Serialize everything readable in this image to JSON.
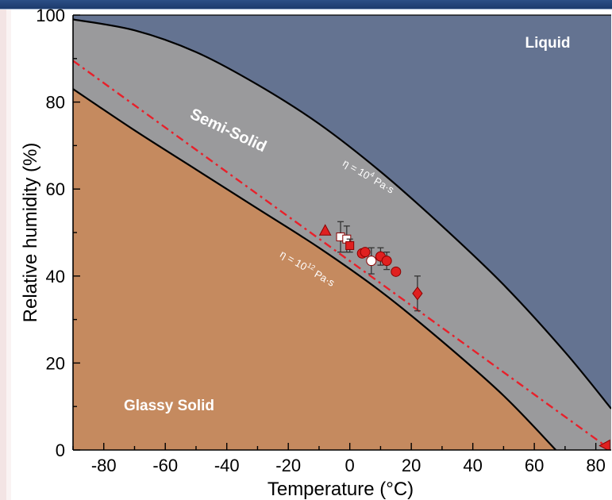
{
  "chart_data": {
    "type": "scatter",
    "title": "",
    "xlabel": "Temperature (°C)",
    "ylabel": "Relative humidity (%)",
    "xlim": [
      -90,
      85
    ],
    "ylim": [
      0,
      100
    ],
    "x_ticks": [
      "-80",
      "-60",
      "-40",
      "-20",
      "0",
      "20",
      "40",
      "60",
      "80"
    ],
    "y_ticks": [
      "0",
      "20",
      "40",
      "60",
      "80",
      "100"
    ],
    "regions": [
      {
        "name": "Liquid",
        "color": "#647391"
      },
      {
        "name": "Semi-Solid",
        "color": "#9a9a9c"
      },
      {
        "name": "Glassy Solid",
        "color": "#c58a5f"
      }
    ],
    "curves": [
      {
        "label": "η = 10⁴ Pa·s",
        "x": [
          -90,
          -70,
          -50,
          -30,
          -10,
          10,
          30,
          50,
          70,
          85
        ],
        "y": [
          99,
          96.5,
          91.5,
          84,
          75,
          64,
          51.5,
          38,
          22.5,
          9.5
        ]
      },
      {
        "label": "η = 10¹² Pa·s",
        "x": [
          -90,
          -70,
          -50,
          -30,
          -10,
          10,
          30,
          50,
          67
        ],
        "y": [
          83,
          73.5,
          64.5,
          55.5,
          46.5,
          36.5,
          25,
          12.5,
          0
        ]
      }
    ],
    "fit_line": {
      "style": "dashed",
      "color": "#e8202a",
      "x": [
        -90,
        83
      ],
      "y": [
        89.5,
        1
      ]
    },
    "series": [
      {
        "marker": "triangle-up",
        "fill": "#e02020",
        "points": [
          {
            "x": -8,
            "y": 50.5,
            "err": 0
          }
        ]
      },
      {
        "marker": "square",
        "fill": "#ffffff",
        "points": [
          {
            "x": -3,
            "y": 49,
            "err": 3.5
          },
          {
            "x": -1,
            "y": 48.5,
            "err": 3
          }
        ]
      },
      {
        "marker": "square",
        "fill": "#e02020",
        "points": [
          {
            "x": 0,
            "y": 47,
            "err": 1.5
          }
        ]
      },
      {
        "marker": "circle",
        "fill": "#e02020",
        "points": [
          {
            "x": 4,
            "y": 45.2,
            "err": 0
          },
          {
            "x": 5,
            "y": 45.5,
            "err": 0
          },
          {
            "x": 10,
            "y": 44.5,
            "err": 2
          },
          {
            "x": 12,
            "y": 43.5,
            "err": 2
          },
          {
            "x": 15,
            "y": 41,
            "err": 0
          }
        ]
      },
      {
        "marker": "circle",
        "fill": "#ffffff",
        "points": [
          {
            "x": 7,
            "y": 43.5,
            "err": 3
          }
        ]
      },
      {
        "marker": "diamond",
        "fill": "#e02020",
        "points": [
          {
            "x": 22,
            "y": 36,
            "err": 4
          }
        ]
      },
      {
        "marker": "triangle-left",
        "fill": "#e02020",
        "points": [
          {
            "x": 83,
            "y": 1,
            "err": 0
          }
        ]
      }
    ],
    "annotations": {
      "liquid": "Liquid",
      "semi_solid": "Semi-Solid",
      "glassy_solid": "Glassy Solid",
      "eta4": {
        "eta": "η = 10",
        "exp": "4",
        "unit": " Pa·s"
      },
      "eta12": {
        "eta": "η = 10",
        "exp": "12",
        "unit": " Pa·s"
      }
    },
    "grid": false,
    "legend": "none"
  }
}
